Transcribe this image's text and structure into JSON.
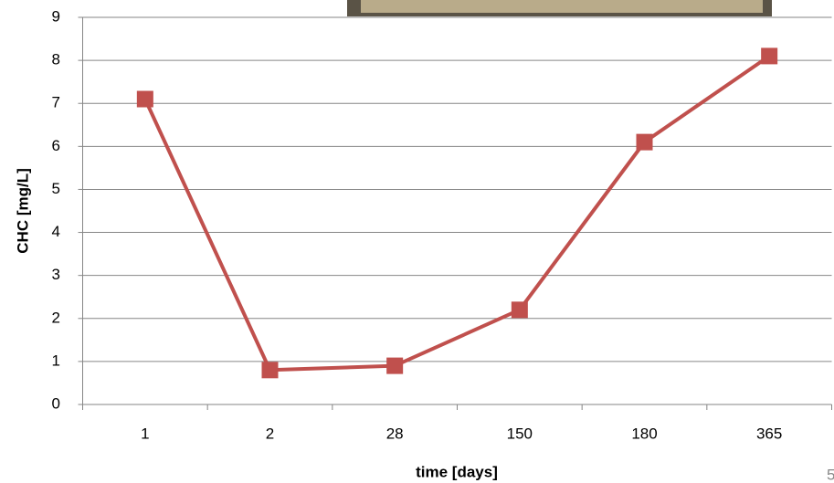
{
  "chart_data": {
    "type": "line",
    "x_label": "time [days]",
    "y_label": "CHC [mg/L]",
    "categories": [
      "1",
      "2",
      "28",
      "150",
      "180",
      "365"
    ],
    "values": [
      7.1,
      0.8,
      0.9,
      2.2,
      6.1,
      8.1
    ],
    "color": "#c0504d",
    "ylim": [
      0,
      9
    ],
    "yticks": [
      0,
      1,
      2,
      3,
      4,
      5,
      6,
      7,
      8,
      9
    ],
    "grid": true
  },
  "page_number": "5"
}
